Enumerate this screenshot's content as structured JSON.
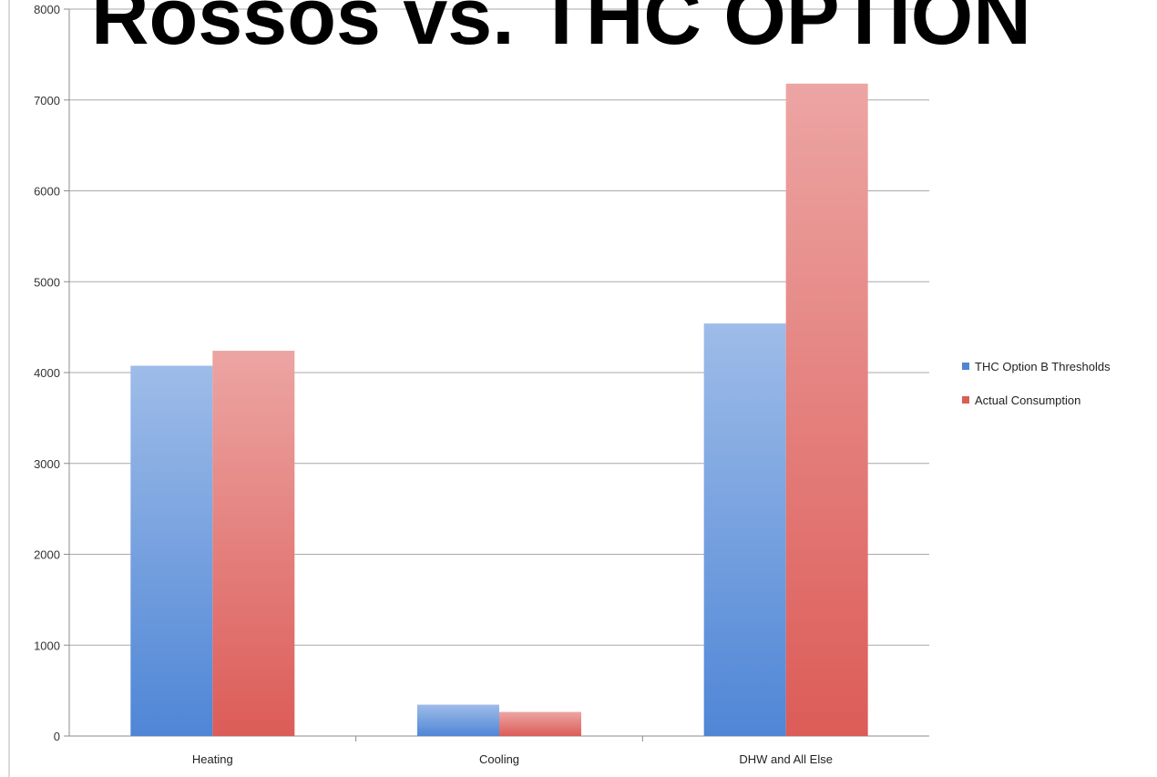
{
  "chart_data": {
    "type": "bar",
    "title": "Rossos vs. THC OPTION",
    "categories": [
      "Heating",
      "Cooling",
      "DHW and All Else"
    ],
    "series": [
      {
        "name": "THC Option B Thresholds",
        "values": [
          4075,
          345,
          4540
        ],
        "color": "#4f86d6"
      },
      {
        "name": "Actual Consumption",
        "values": [
          4240,
          265,
          7180
        ],
        "color": "#dc5c58"
      }
    ],
    "ylim": [
      0,
      8000
    ],
    "yticks": [
      "0",
      "1000",
      "2000",
      "3000",
      "4000",
      "5000",
      "6000",
      "7000",
      "8000"
    ],
    "xlabel": "",
    "ylabel": "",
    "grid": true,
    "legend_position": "right"
  }
}
